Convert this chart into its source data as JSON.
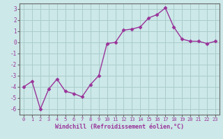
{
  "x": [
    0,
    1,
    2,
    3,
    4,
    5,
    6,
    7,
    8,
    9,
    10,
    11,
    12,
    13,
    14,
    15,
    16,
    17,
    18,
    19,
    20,
    21,
    22,
    23
  ],
  "y": [
    -4.0,
    -3.5,
    -6.0,
    -4.2,
    -3.3,
    -4.4,
    -4.6,
    -4.9,
    -3.8,
    -3.0,
    -0.1,
    0.0,
    1.1,
    1.2,
    1.4,
    2.2,
    2.5,
    3.1,
    1.4,
    0.3,
    0.1,
    0.1,
    -0.1,
    0.1
  ],
  "line_color": "#993399",
  "marker": "D",
  "markersize": 2.5,
  "background_color": "#cce8e8",
  "grid_color": "#aacccc",
  "xlabel": "Windchill (Refroidissement éolien,°C)",
  "ylabel": "",
  "ylim": [
    -6.5,
    3.5
  ],
  "xlim": [
    -0.5,
    23.5
  ],
  "yticks": [
    -6,
    -5,
    -4,
    -3,
    -2,
    -1,
    0,
    1,
    2,
    3
  ],
  "xticks": [
    0,
    1,
    2,
    3,
    4,
    5,
    6,
    7,
    8,
    9,
    10,
    11,
    12,
    13,
    14,
    15,
    16,
    17,
    18,
    19,
    20,
    21,
    22,
    23
  ],
  "tick_label_color": "#993399",
  "xlabel_color": "#993399",
  "linewidth": 1.0,
  "axis_color": "#666666"
}
